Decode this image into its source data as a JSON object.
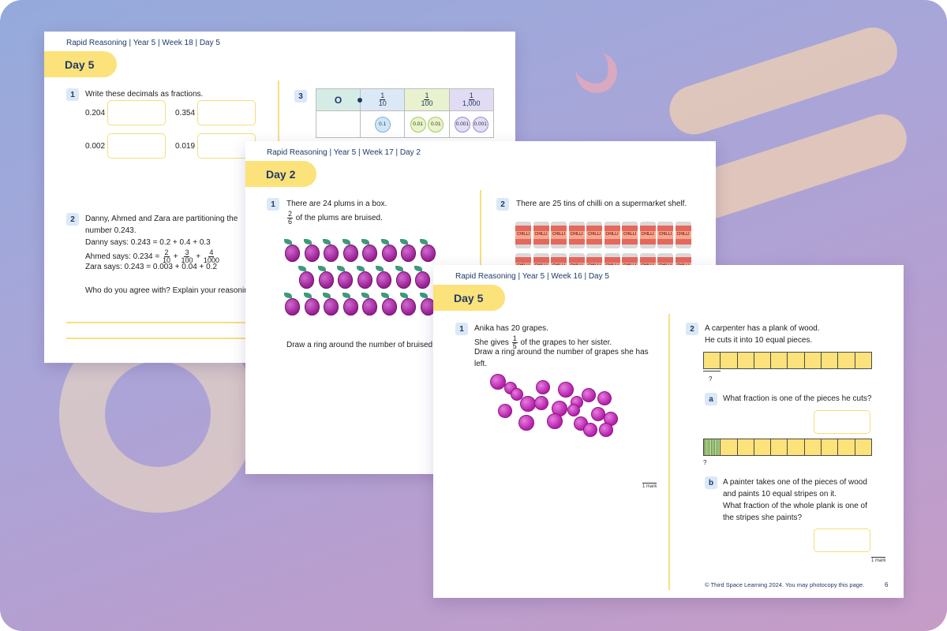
{
  "colors": {
    "accent_yellow": "#fbe27a",
    "navy": "#1f3a68",
    "grape": "#b41ea9",
    "bar_yellow": "#fbe27a"
  },
  "sheet1": {
    "header": "Rapid Reasoning | Year 5 | Week 18 | Day 5",
    "day": "Day 5",
    "q1": {
      "num": "1",
      "prompt": "Write these decimals as fractions.",
      "items": [
        "0.204",
        "0.354",
        "0.002",
        "0.019"
      ]
    },
    "q2": {
      "num": "2",
      "line1": "Danny, Ahmed and Zara are partitioning the",
      "line2": "number 0.243.",
      "danny": "Danny says: 0.243 = 0.2 + 0.4 + 0.3",
      "ahmed_prefix": "Ahmed says: 0.234 =",
      "ahmed_f1": {
        "n": "2",
        "d": "10"
      },
      "ahmed_f2": {
        "n": "3",
        "d": "100"
      },
      "ahmed_f3": {
        "n": "4",
        "d": "1000"
      },
      "zara": "Zara says: 0.243 = 0.003 + 0.04 + 0.2",
      "question": "Who do you agree with? Explain your reasoning."
    },
    "q3": {
      "num": "3",
      "col_o": "O",
      "col1": {
        "n": "1",
        "d": "10"
      },
      "col2": {
        "n": "1",
        "d": "100"
      },
      "col3": {
        "n": "1",
        "d": "1,000"
      },
      "chips": [
        "0.1",
        "0.01",
        "0.01",
        "0.001",
        "0.001"
      ]
    }
  },
  "sheet2": {
    "header": "Rapid Reasoning | Year 5 | Week 17 | Day 2",
    "day": "Day 2",
    "q1": {
      "num": "1",
      "line1": "There are 24 plums in a box.",
      "frac": {
        "n": "2",
        "d": "6"
      },
      "line2": "of the plums are bruised.",
      "instruction": "Draw a ring around the number of bruised plums."
    },
    "q2": {
      "num": "2",
      "line1": "There are 25 tins of chilli on a supermarket shelf.",
      "can_label": "CHILLI"
    }
  },
  "sheet3": {
    "header": "Rapid Reasoning | Year 5 | Week 16 | Day 5",
    "day": "Day 5",
    "q1": {
      "num": "1",
      "line1": "Anika has 20 grapes.",
      "gives_prefix": "She gives",
      "frac": {
        "n": "1",
        "d": "5"
      },
      "gives_suffix": "of the grapes to her sister.",
      "line3": "Draw a ring around the number of grapes she has",
      "line4": "left.",
      "mark": "1 mark"
    },
    "q2": {
      "num": "2",
      "line1": "A carpenter has a plank of wood.",
      "line2": "He cuts it into 10 equal pieces.",
      "q_mark": "?",
      "a_label": "a",
      "a_text": "What fraction is one of the pieces he cuts?",
      "b_label": "b",
      "b_line1": "A painter takes one of the pieces of wood",
      "b_line2": "and paints 10 equal stripes on it.",
      "b_line3": "What fraction of the whole plank is one of",
      "b_line4": "the stripes she paints?",
      "mark": "1 mark"
    },
    "footer": "© Third Space Learning 2024. You may photocopy this page.",
    "page": "6"
  }
}
